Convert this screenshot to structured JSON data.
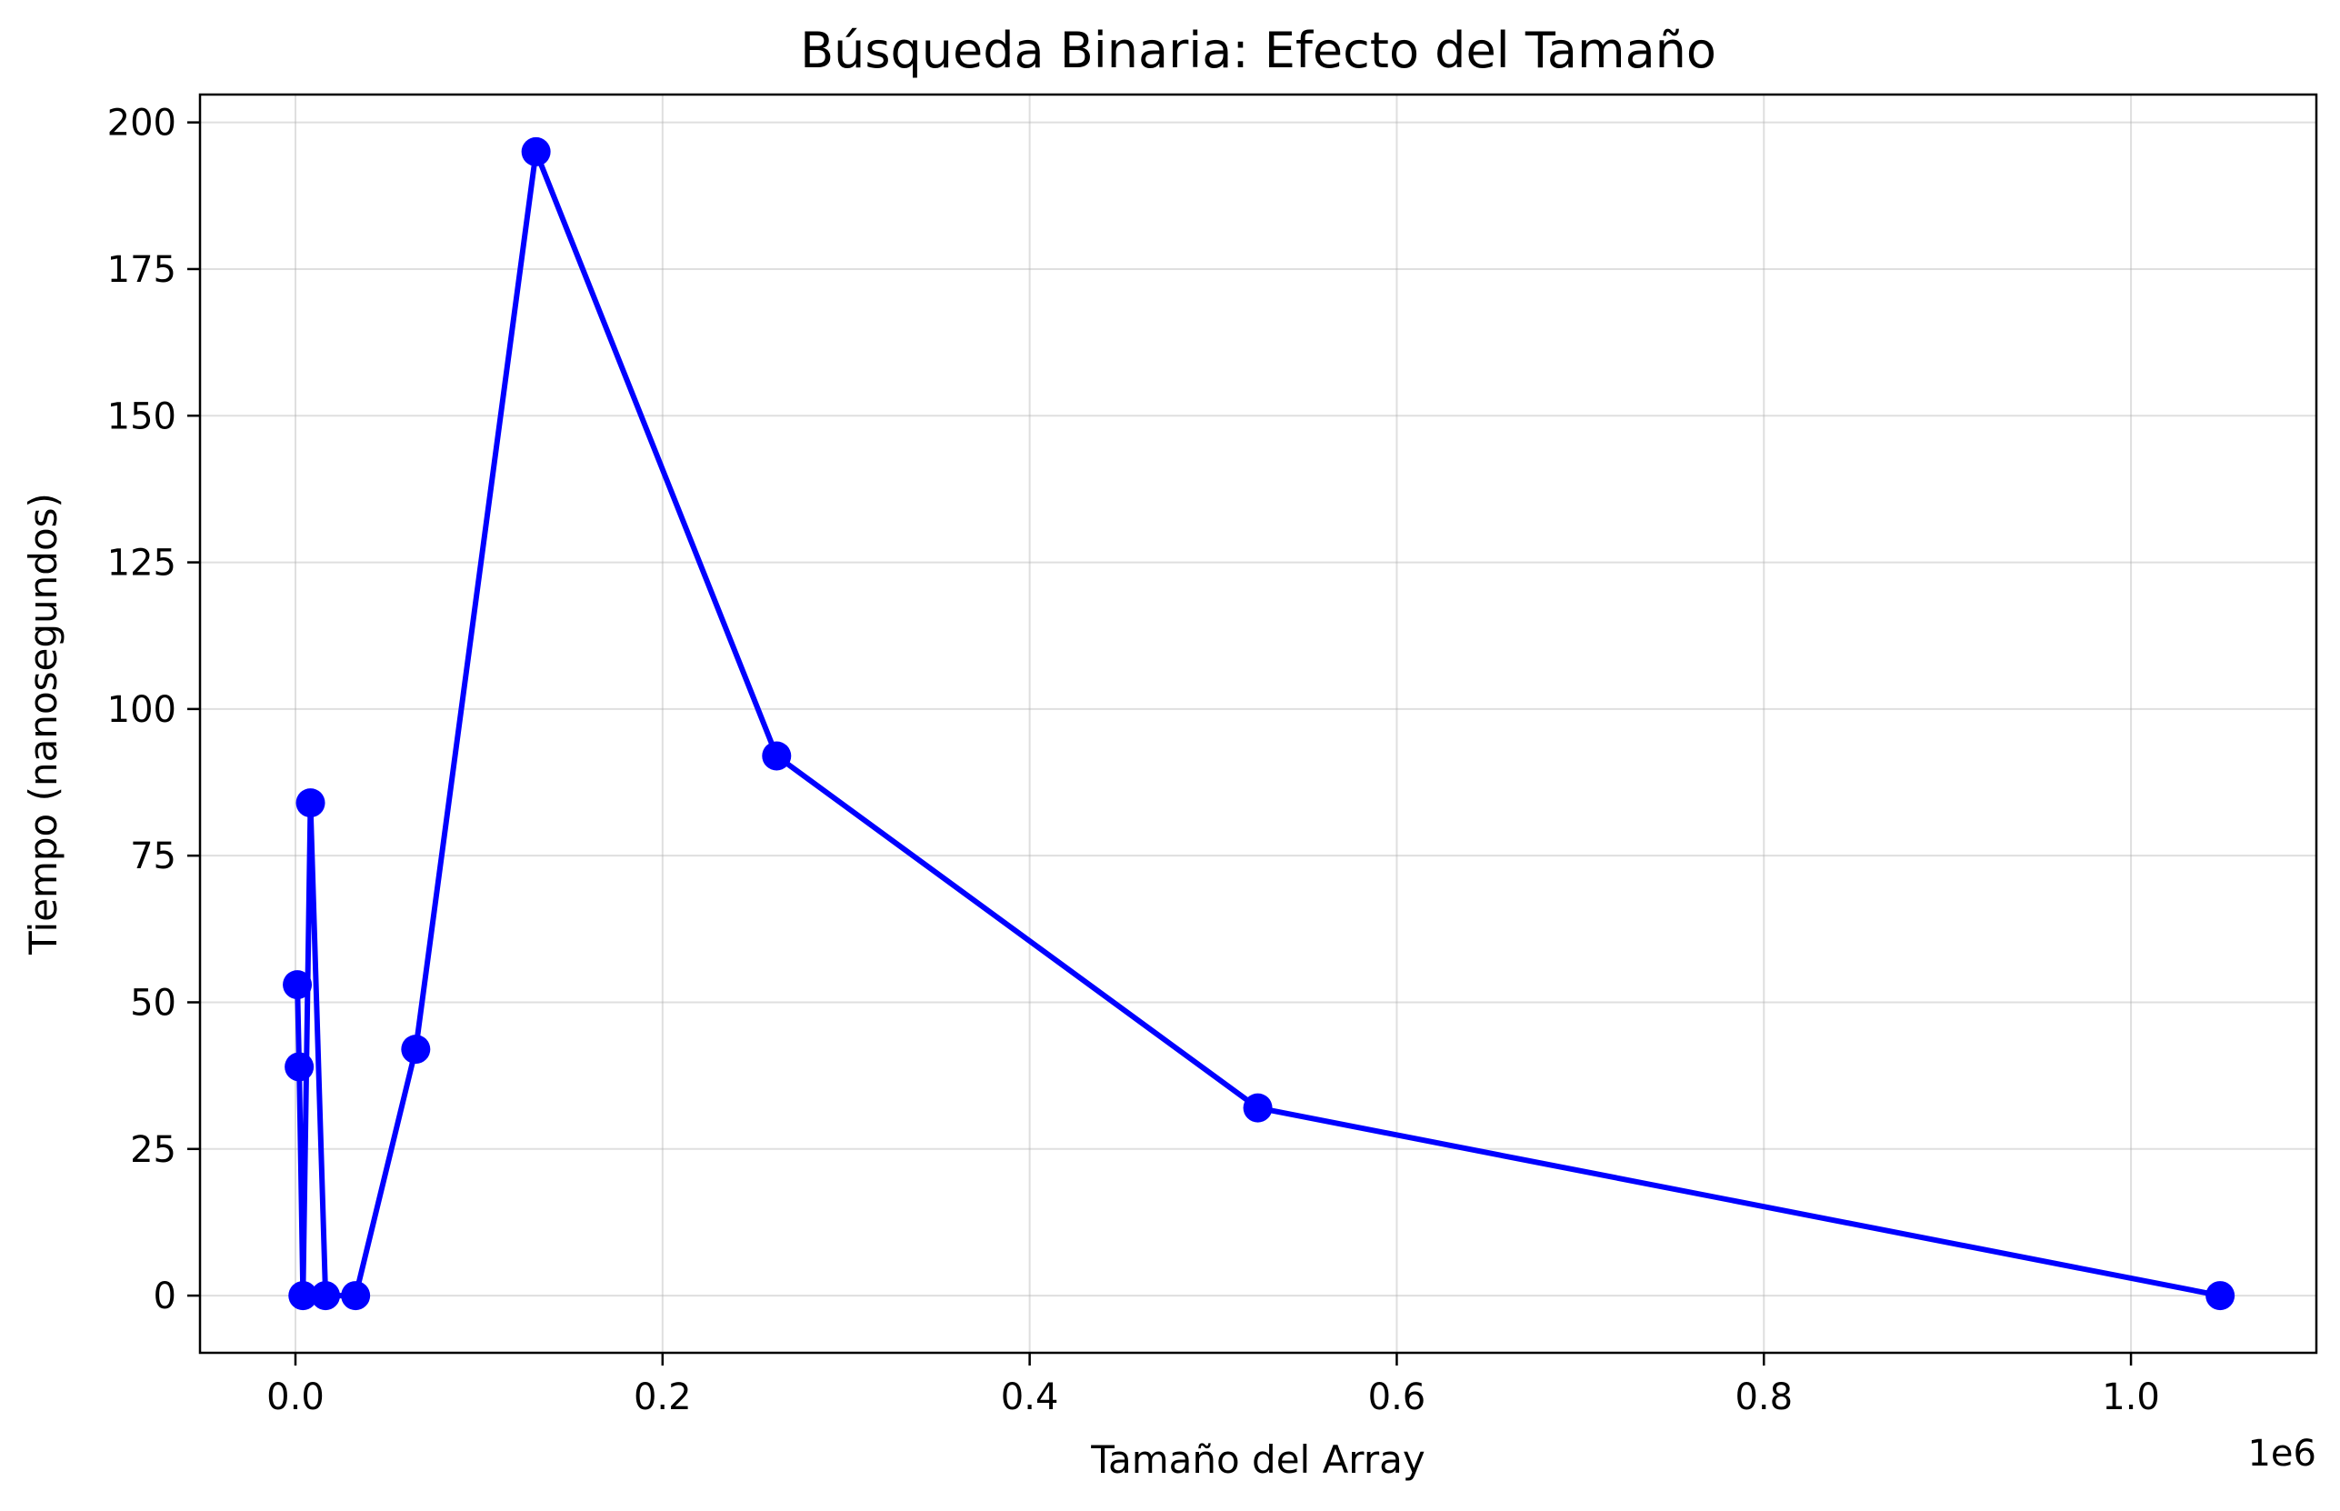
{
  "chart_data": {
    "type": "line",
    "title": "Búsqueda Binaria: Efecto del Tamaño",
    "xlabel": "Tamaño del Array",
    "ylabel": "Tiempo (nanosegundos)",
    "x_offset_label": "1e6",
    "x_scale": 1000000,
    "xlim": [
      -52000,
      1101000
    ],
    "ylim": [
      -9.75,
      204.75
    ],
    "x_ticks": [
      0,
      200000,
      400000,
      600000,
      800000,
      1000000
    ],
    "x_tick_labels": [
      "0.0",
      "0.2",
      "0.4",
      "0.6",
      "0.8",
      "1.0"
    ],
    "y_ticks": [
      0,
      25,
      50,
      75,
      100,
      125,
      150,
      175,
      200
    ],
    "y_tick_labels": [
      "0",
      "25",
      "50",
      "75",
      "100",
      "125",
      "150",
      "175",
      "200"
    ],
    "grid": true,
    "series": [
      {
        "color": "#0000ff",
        "marker": "circle",
        "x": [
          1024,
          2048,
          4096,
          8192,
          16384,
          32768,
          65536,
          131072,
          262144,
          524288,
          1048576
        ],
        "y": [
          53,
          39,
          0,
          84,
          0,
          0,
          42,
          195,
          92,
          32,
          0
        ]
      }
    ]
  }
}
